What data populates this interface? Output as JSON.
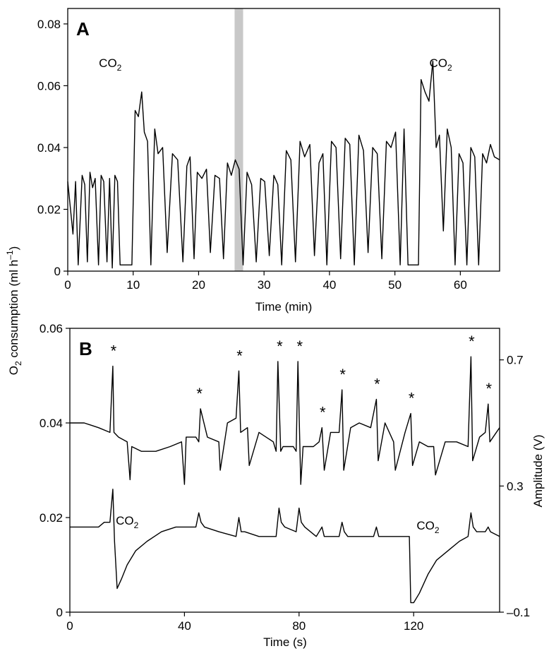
{
  "chart_data": [
    {
      "panel": "A",
      "type": "line",
      "xlabel": "Time (min)",
      "xlim": [
        0,
        66
      ],
      "ylim": [
        0,
        0.085
      ],
      "x_ticks": [
        0,
        10,
        20,
        30,
        40,
        50,
        60
      ],
      "y_ticks": [
        0,
        0.02,
        0.04,
        0.06,
        0.08
      ],
      "x_tick_labels": [
        "0",
        "10",
        "20",
        "30",
        "40",
        "50",
        "60"
      ],
      "y_tick_labels": [
        "0",
        "0.02",
        "0.04",
        "0.06",
        "0.08"
      ],
      "shaded_band_x": [
        25.5,
        26.8
      ],
      "annotations": [
        {
          "text": "CO",
          "sub": "2",
          "x": 6.5,
          "y": 0.066
        },
        {
          "text": "CO",
          "sub": "2",
          "x": 57,
          "y": 0.066
        }
      ],
      "series": [
        {
          "x": [
            0,
            0.8,
            1.2,
            1.6,
            2.2,
            2.6,
            3.0,
            3.4,
            3.8,
            4.2,
            4.7,
            5.1,
            5.5,
            6.0,
            6.4,
            6.8,
            7.2,
            7.6,
            8.0,
            8.5,
            9.2,
            9.8,
            10.3,
            10.8,
            11.3,
            11.7,
            12.2,
            12.7,
            13.3,
            13.8,
            14.5,
            15.2,
            16.0,
            16.8,
            17.6,
            18.2,
            18.7,
            19.3,
            19.8,
            20.5,
            21.2,
            21.8,
            22.5,
            23.2,
            23.8,
            24.4,
            25.0,
            25.6,
            26.2,
            26.8,
            27.4,
            28.1,
            28.8,
            29.5,
            30.1,
            30.8,
            31.5,
            32.1,
            32.7,
            33.4,
            34.1,
            34.8,
            35.5,
            36.2,
            37.0,
            37.7,
            38.4,
            39.0,
            39.6,
            40.3,
            41.0,
            41.7,
            42.4,
            43.1,
            43.8,
            44.5,
            45.2,
            45.9,
            46.6,
            47.3,
            48.0,
            48.7,
            49.4,
            50.1,
            50.8,
            51.4,
            52.0,
            52.8,
            53.6,
            54.0,
            54.6,
            55.2,
            55.8,
            56.3,
            56.8,
            57.4,
            58.0,
            58.6,
            59.2,
            59.8,
            60.4,
            61.0,
            61.6,
            62.2,
            62.8,
            63.4,
            64.0,
            64.6,
            65.2,
            66.0
          ],
          "y": [
            0.029,
            0.012,
            0.029,
            0.002,
            0.031,
            0.028,
            0.003,
            0.032,
            0.027,
            0.03,
            0.002,
            0.031,
            0.029,
            0.003,
            0.03,
            0.001,
            0.031,
            0.029,
            0.002,
            0.002,
            0.002,
            0.002,
            0.052,
            0.05,
            0.058,
            0.045,
            0.042,
            0.002,
            0.046,
            0.038,
            0.04,
            0.006,
            0.038,
            0.036,
            0.003,
            0.034,
            0.037,
            0.004,
            0.032,
            0.03,
            0.033,
            0.006,
            0.031,
            0.03,
            0.004,
            0.035,
            0.031,
            0.036,
            0.033,
            0.002,
            0.032,
            0.028,
            0.003,
            0.03,
            0.029,
            0.005,
            0.031,
            0.028,
            0.002,
            0.039,
            0.036,
            0.003,
            0.042,
            0.037,
            0.041,
            0.005,
            0.035,
            0.038,
            0.002,
            0.042,
            0.04,
            0.004,
            0.043,
            0.041,
            0.002,
            0.044,
            0.039,
            0.006,
            0.04,
            0.038,
            0.004,
            0.042,
            0.04,
            0.045,
            0.002,
            0.046,
            0.002,
            0.002,
            0.002,
            0.062,
            0.058,
            0.055,
            0.068,
            0.04,
            0.044,
            0.013,
            0.046,
            0.04,
            0.002,
            0.038,
            0.035,
            0.002,
            0.04,
            0.037,
            0.002,
            0.038,
            0.035,
            0.041,
            0.037,
            0.036
          ]
        }
      ]
    },
    {
      "panel": "B",
      "type": "line",
      "xlabel": "Time (s)",
      "xlim": [
        0,
        150
      ],
      "ylim": [
        0,
        0.06
      ],
      "y2label": "Amplitude (V)",
      "y2lim": [
        -0.1,
        0.8
      ],
      "x_ticks": [
        0,
        40,
        80,
        120
      ],
      "y_ticks": [
        0,
        0.02,
        0.04,
        0.06
      ],
      "y2_ticks": [
        -0.1,
        0.3,
        0.7
      ],
      "x_tick_labels": [
        "0",
        "40",
        "80",
        "120"
      ],
      "y_tick_labels": [
        "0",
        "0.02",
        "0.04",
        "0.06"
      ],
      "y2_tick_labels": [
        "–0.1",
        "0.3",
        "0.7"
      ],
      "stars_x": [
        15,
        45,
        59,
        73,
        80,
        88,
        95,
        107,
        119,
        140,
        146
      ],
      "annotations": [
        {
          "text": "CO",
          "sub": "2",
          "x": 20,
          "y": 0.0185
        },
        {
          "text": "CO",
          "sub": "2",
          "x": 125,
          "y": 0.0175
        }
      ],
      "series": [
        {
          "name": "O2 consumption",
          "x": [
            0,
            5,
            10,
            14,
            15,
            15.4,
            17,
            20,
            21,
            21.6,
            25,
            30,
            35,
            39,
            40,
            40.6,
            44,
            45,
            45.6,
            48,
            52,
            52.5,
            55,
            58,
            59,
            59.6,
            62,
            62.6,
            66,
            71,
            72,
            72.6,
            73.6,
            74.4,
            78,
            79,
            79.6,
            80.6,
            81.4,
            85,
            87,
            88,
            88.8,
            91,
            94,
            95,
            95.6,
            98,
            101,
            105,
            107,
            107.6,
            110,
            113,
            113.6,
            117,
            119,
            119.6,
            122,
            125,
            127,
            127.6,
            131,
            135,
            139,
            140,
            140.6,
            143,
            145,
            146,
            146.6,
            150
          ],
          "y": [
            0.04,
            0.04,
            0.039,
            0.038,
            0.052,
            0.038,
            0.037,
            0.036,
            0.028,
            0.035,
            0.034,
            0.034,
            0.035,
            0.036,
            0.027,
            0.037,
            0.037,
            0.036,
            0.043,
            0.037,
            0.036,
            0.03,
            0.04,
            0.041,
            0.051,
            0.038,
            0.039,
            0.031,
            0.038,
            0.036,
            0.034,
            0.053,
            0.034,
            0.035,
            0.035,
            0.034,
            0.053,
            0.027,
            0.035,
            0.035,
            0.036,
            0.039,
            0.03,
            0.038,
            0.038,
            0.047,
            0.03,
            0.039,
            0.04,
            0.039,
            0.045,
            0.032,
            0.04,
            0.036,
            0.03,
            0.038,
            0.042,
            0.031,
            0.036,
            0.035,
            0.035,
            0.029,
            0.036,
            0.036,
            0.035,
            0.054,
            0.032,
            0.037,
            0.038,
            0.044,
            0.036,
            0.039
          ]
        },
        {
          "name": "Amplitude",
          "x": [
            0,
            5,
            10,
            12,
            14,
            15,
            15.6,
            16.5,
            18,
            20,
            23,
            27,
            32,
            37,
            41,
            44,
            45,
            45.8,
            47,
            52,
            58,
            59,
            59.8,
            61,
            66,
            72,
            73,
            73.8,
            75,
            79,
            80,
            80.8,
            82,
            86,
            88,
            88.8,
            90,
            94,
            95,
            95.8,
            97,
            100,
            106,
            107,
            107.8,
            109,
            113,
            116,
            118.5,
            119,
            120,
            122,
            125,
            128,
            132,
            136,
            139,
            140,
            140.8,
            142,
            145,
            146,
            146.8,
            150
          ],
          "y": [
            0.018,
            0.018,
            0.018,
            0.019,
            0.019,
            0.026,
            0.015,
            0.005,
            0.007,
            0.01,
            0.013,
            0.015,
            0.017,
            0.018,
            0.018,
            0.018,
            0.021,
            0.019,
            0.018,
            0.017,
            0.016,
            0.02,
            0.017,
            0.017,
            0.016,
            0.016,
            0.022,
            0.019,
            0.018,
            0.017,
            0.022,
            0.019,
            0.018,
            0.016,
            0.018,
            0.016,
            0.016,
            0.016,
            0.019,
            0.017,
            0.016,
            0.016,
            0.016,
            0.018,
            0.016,
            0.016,
            0.016,
            0.016,
            0.016,
            0.002,
            0.002,
            0.004,
            0.008,
            0.011,
            0.013,
            0.015,
            0.016,
            0.021,
            0.018,
            0.017,
            0.017,
            0.018,
            0.017,
            0.016
          ]
        }
      ]
    }
  ],
  "shared_ylabel": "O2 consumption (ml h–1)",
  "shared_ylabel_parts": {
    "pre": "O",
    "sub": "2",
    "mid": " consumption (ml h",
    "sup": "–1",
    "post": ")"
  },
  "colors": {
    "line": "#000000",
    "band": "#c8c8c8",
    "background": "#ffffff"
  }
}
